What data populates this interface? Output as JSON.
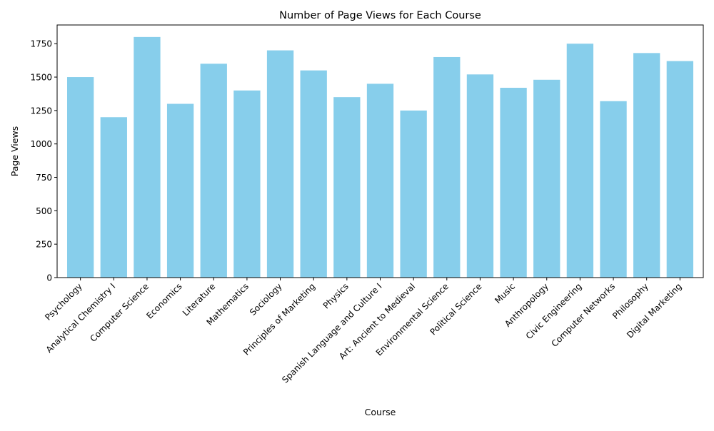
{
  "chart_data": {
    "type": "bar",
    "title": "Number of Page Views for Each Course",
    "xlabel": "Course",
    "ylabel": "Page Views",
    "categories": [
      "Psychology",
      "Analytical Chemistry I",
      "Computer Science",
      "Economics",
      "Literature",
      "Mathematics",
      "Sociology",
      "Principles of Marketing",
      "Physics",
      "Spanish Language and Culture I",
      "Art: Ancient to Medieval",
      "Environmental Science",
      "Political Science",
      "Music",
      "Anthropology",
      "Civic Engineering",
      "Computer Networks",
      "Philosophy",
      "Digital Marketing"
    ],
    "values": [
      1500,
      1200,
      1800,
      1300,
      1600,
      1400,
      1700,
      1550,
      1350,
      1450,
      1250,
      1650,
      1520,
      1420,
      1480,
      1750,
      1320,
      1680,
      1620
    ],
    "ylim": [
      0,
      1890
    ],
    "yticks": [
      0,
      250,
      500,
      750,
      1000,
      1250,
      1500,
      1750
    ],
    "bar_color": "#87ceeb",
    "grid": false,
    "legend": false
  }
}
